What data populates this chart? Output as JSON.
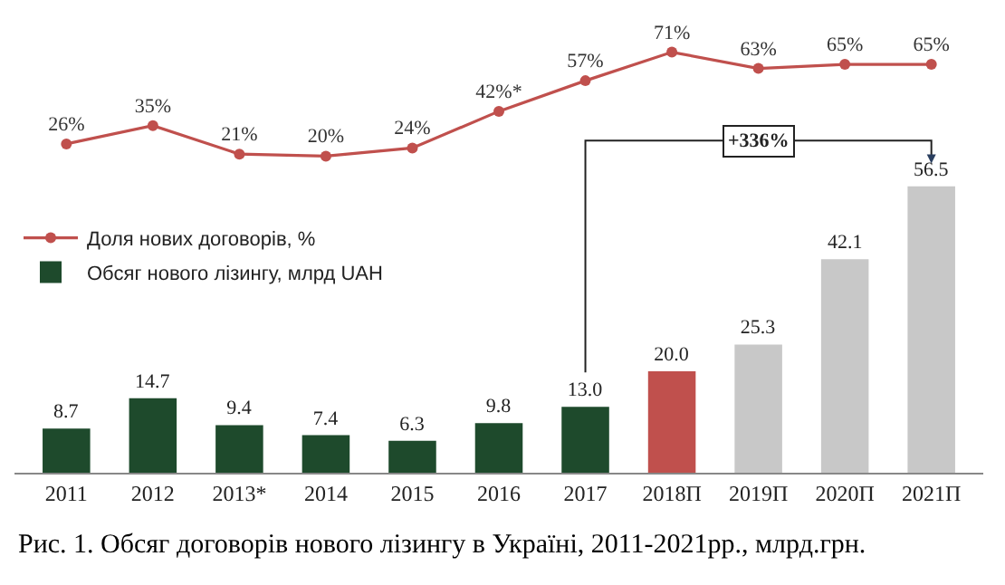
{
  "chart_data": [
    {
      "type": "line",
      "categories": [
        "2011",
        "2012",
        "2013*",
        "2014",
        "2015",
        "2016",
        "2017",
        "2018П",
        "2019П",
        "2020П",
        "2021П"
      ],
      "series": [
        {
          "name": "Доля нових договорів, %",
          "color": "#c0504d",
          "values": [
            26,
            35,
            21,
            20,
            24,
            42,
            57,
            71,
            63,
            65,
            65
          ],
          "value_labels": [
            "26%",
            "35%",
            "21%",
            "20%",
            "24%",
            "42%*",
            "57%",
            "71%",
            "63%",
            "65%",
            "65%"
          ]
        }
      ],
      "marker": "circle",
      "legend": "bottom left",
      "tick_labels": false
    },
    {
      "type": "bar",
      "categories": [
        "2011",
        "2012",
        "2013*",
        "2014",
        "2015",
        "2016",
        "2017",
        "2018П",
        "2019П",
        "2020П",
        "2021П"
      ],
      "series": [
        {
          "name": "Обсяг нового лізингу, млрд UAH",
          "colors": [
            "#1e4a2c",
            "#1e4a2c",
            "#1e4a2c",
            "#1e4a2c",
            "#1e4a2c",
            "#1e4a2c",
            "#1e4a2c",
            "#c0504d",
            "#c8c8c8",
            "#c8c8c8",
            "#c8c8c8"
          ],
          "values": [
            8.7,
            14.7,
            9.4,
            7.4,
            6.3,
            9.8,
            13.0,
            20.0,
            25.3,
            42.1,
            56.5
          ],
          "value_labels": [
            "8.7",
            "14.7",
            "9.4",
            "7.4",
            "6.3",
            "9.8",
            "13.0",
            "20.0",
            "25.3",
            "42.1",
            "56.5"
          ]
        }
      ],
      "annotations": [
        "+336%",
        "Рис. 1. Обсяг договорів нового лізингу в Україні, 2011-2021рр., млрд.грн."
      ],
      "legend": "top left",
      "tick_labels": "x"
    }
  ]
}
